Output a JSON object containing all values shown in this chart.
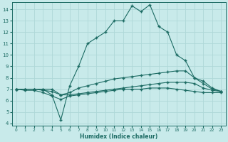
{
  "xlabel": "Humidex (Indice chaleur)",
  "xlim": [
    -0.5,
    23.5
  ],
  "ylim": [
    3.8,
    14.6
  ],
  "yticks": [
    4,
    5,
    6,
    7,
    8,
    9,
    10,
    11,
    12,
    13,
    14
  ],
  "xticks": [
    0,
    1,
    2,
    3,
    4,
    5,
    6,
    7,
    8,
    9,
    10,
    11,
    12,
    13,
    14,
    15,
    16,
    17,
    18,
    19,
    20,
    21,
    22,
    23
  ],
  "bg_color": "#c8eaea",
  "line_color": "#1c6b63",
  "grid_color": "#aed8d8",
  "line1_x": [
    0,
    1,
    2,
    3,
    4,
    5,
    6,
    7,
    8,
    9,
    10,
    11,
    12,
    13,
    14,
    15,
    16,
    17,
    18,
    19,
    20,
    21,
    22,
    23
  ],
  "line1_y": [
    7,
    7,
    7,
    7,
    6.5,
    4.3,
    7.3,
    9.0,
    11.0,
    11.5,
    12.0,
    13.0,
    13.0,
    14.3,
    13.8,
    14.4,
    12.5,
    12.0,
    10.0,
    9.5,
    8.0,
    7.5,
    7.0,
    6.8
  ],
  "line2_x": [
    0,
    1,
    2,
    3,
    4,
    5,
    6,
    7,
    8,
    9,
    10,
    11,
    12,
    13,
    14,
    15,
    16,
    17,
    18,
    19,
    20,
    21,
    22,
    23
  ],
  "line2_y": [
    7,
    7,
    7,
    7,
    7.0,
    6.5,
    6.7,
    7.1,
    7.3,
    7.5,
    7.7,
    7.9,
    8.0,
    8.1,
    8.2,
    8.3,
    8.4,
    8.5,
    8.6,
    8.6,
    8.0,
    7.7,
    7.1,
    6.8
  ],
  "line3_x": [
    0,
    1,
    2,
    3,
    4,
    5,
    6,
    7,
    8,
    9,
    10,
    11,
    12,
    13,
    14,
    15,
    16,
    17,
    18,
    19,
    20,
    21,
    22,
    23
  ],
  "line3_y": [
    7,
    7,
    7,
    6.9,
    6.8,
    6.5,
    6.5,
    6.6,
    6.7,
    6.8,
    6.9,
    7.0,
    7.1,
    7.2,
    7.3,
    7.4,
    7.5,
    7.6,
    7.6,
    7.6,
    7.5,
    7.1,
    6.9,
    6.8
  ],
  "line4_x": [
    0,
    1,
    2,
    3,
    4,
    5,
    6,
    7,
    8,
    9,
    10,
    11,
    12,
    13,
    14,
    15,
    16,
    17,
    18,
    19,
    20,
    21,
    22,
    23
  ],
  "line4_y": [
    7,
    6.9,
    6.9,
    6.7,
    6.4,
    6.1,
    6.4,
    6.5,
    6.6,
    6.7,
    6.8,
    6.9,
    7.0,
    7.0,
    7.0,
    7.1,
    7.1,
    7.1,
    7.0,
    6.9,
    6.8,
    6.7,
    6.7,
    6.7
  ]
}
